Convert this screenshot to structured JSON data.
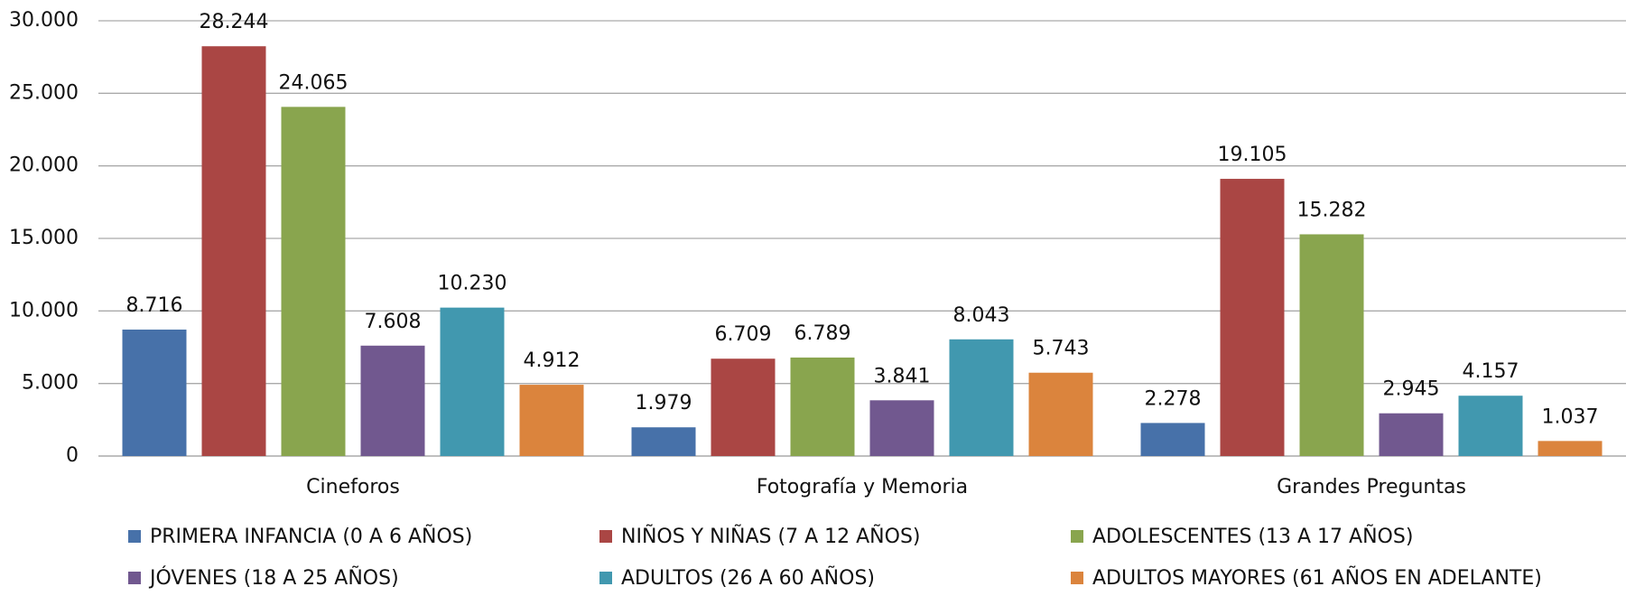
{
  "chart_data": {
    "type": "bar",
    "categories": [
      "Cineforos",
      "Fotografía y Memoria",
      "Grandes Preguntas"
    ],
    "series": [
      {
        "name": "PRIMERA INFANCIA (0 A 6 AÑOS)",
        "color": "#4771a9",
        "values": [
          8716,
          1979,
          2278
        ],
        "value_labels": [
          "8.716",
          "1.979",
          "2.278"
        ]
      },
      {
        "name": "NIÑOS Y NIÑAS (7 A 12 AÑOS)",
        "color": "#aa4644",
        "values": [
          28244,
          6709,
          19105
        ],
        "value_labels": [
          "28.244",
          "6.709",
          "19.105"
        ]
      },
      {
        "name": "ADOLESCENTES (13 A 17 AÑOS)",
        "color": "#89a54e",
        "values": [
          24065,
          6789,
          15282
        ],
        "value_labels": [
          "24.065",
          "6.789",
          "15.282"
        ]
      },
      {
        "name": "JÓVENES (18 A 25 AÑOS)",
        "color": "#71588f",
        "values": [
          7608,
          3841,
          2945
        ],
        "value_labels": [
          "7.608",
          "3.841",
          "2.945"
        ]
      },
      {
        "name": "ADULTOS (26 A 60 AÑOS)",
        "color": "#4198af",
        "values": [
          10230,
          8043,
          4157
        ],
        "value_labels": [
          "10.230",
          "8.043",
          "4.157"
        ]
      },
      {
        "name": "ADULTOS MAYORES (61 AÑOS EN ADELANTE)",
        "color": "#db843d",
        "values": [
          4912,
          5743,
          1037
        ],
        "value_labels": [
          "4.912",
          "5.743",
          "1.037"
        ]
      }
    ],
    "ylim": [
      0,
      30000
    ],
    "yticks": [
      0,
      {
        "value": 5000,
        "label": "5.000"
      },
      {
        "value": 10000,
        "label": "10.000"
      },
      {
        "value": 15000,
        "label": "15.000"
      },
      {
        "value": 20000,
        "label": "20.000"
      },
      {
        "value": 25000,
        "label": "25.000"
      },
      {
        "value": 30000,
        "label": "30.000"
      }
    ],
    "grid": true
  }
}
